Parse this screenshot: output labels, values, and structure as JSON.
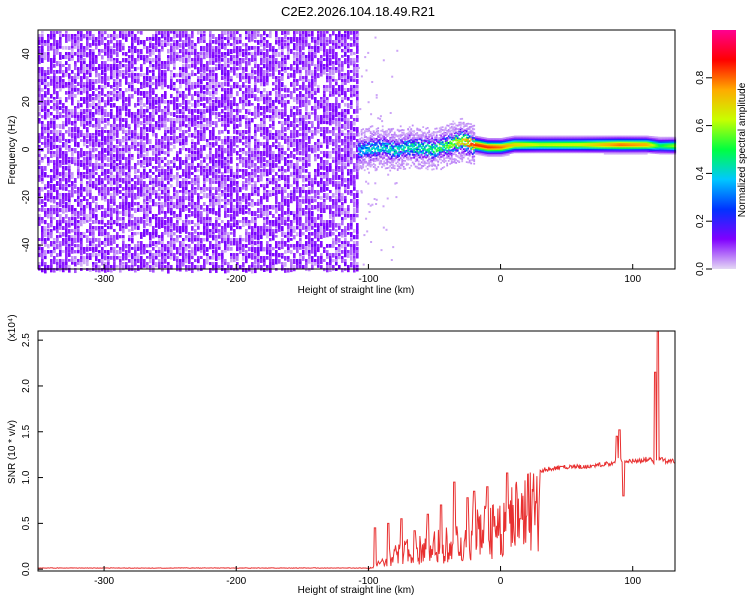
{
  "title": "C2E2.2026.104.18.49.R21",
  "chart_data": [
    {
      "type": "heatmap",
      "xlabel": "Height of straight line (km)",
      "ylabel": "Frequency (Hz)",
      "xlim": [
        -350,
        132
      ],
      "ylim": [
        -50,
        50
      ],
      "x_ticks": [
        -300,
        -200,
        -100,
        0,
        100
      ],
      "x_tick_labels": [
        "-300",
        "-200",
        "-100",
        "0",
        "100"
      ],
      "y_ticks": [
        -40,
        -20,
        0,
        20,
        40
      ],
      "y_tick_labels": [
        "-40",
        "-20",
        "0",
        "20",
        "40"
      ],
      "noise_region_x": [
        -350,
        -109
      ],
      "ridge": {
        "x": [
          -108,
          -100,
          -90,
          -80,
          -70,
          -60,
          -50,
          -40,
          -30,
          -20,
          -10,
          0,
          10,
          30,
          60,
          90,
          110,
          120,
          132
        ],
        "freq": [
          0,
          0.5,
          1,
          0,
          1.5,
          0.5,
          0.5,
          2,
          4,
          2,
          1,
          1,
          2,
          2,
          2,
          2,
          2,
          1.5,
          1.5
        ],
        "amp": [
          0.35,
          0.4,
          0.4,
          0.42,
          0.45,
          0.45,
          0.5,
          0.55,
          0.7,
          0.85,
          0.85,
          0.8,
          0.7,
          0.62,
          0.65,
          0.8,
          0.75,
          0.5,
          0.6
        ]
      },
      "colorbar": {
        "label": "Normalized spectral amplitude",
        "range": [
          0,
          1
        ],
        "ticks": [
          0,
          0.2,
          0.4,
          0.6,
          0.8
        ],
        "tick_labels": [
          "0.0",
          "0.2",
          "0.4",
          "0.6",
          "0.8"
        ],
        "colors": [
          "#e4d8f4",
          "#8000ff",
          "#0033ff",
          "#00c8ff",
          "#00ff40",
          "#c8ff00",
          "#ffaa00",
          "#ff0000",
          "#ff0090"
        ]
      }
    },
    {
      "type": "line",
      "xlabel": "Height of straight line (km)",
      "ylabel": "SNR (10 * v/v)",
      "y_multiplier_label": "(x10⁴)",
      "xlim": [
        -350,
        132
      ],
      "ylim": [
        -0.02,
        2.6
      ],
      "x_ticks": [
        -300,
        -200,
        -100,
        0,
        100
      ],
      "x_tick_labels": [
        "-300",
        "-200",
        "-100",
        "0",
        "100"
      ],
      "y_ticks": [
        0,
        0.5,
        1.0,
        1.5,
        2.0,
        2.5
      ],
      "y_tick_labels": [
        "0.0",
        "0.5",
        "1.0",
        "1.5",
        "2.0",
        "2.5"
      ],
      "series": [
        {
          "color": "#e83030",
          "x": [
            -350,
            -100,
            -95,
            -90,
            -85,
            -80,
            -75,
            -70,
            -65,
            -60,
            -55,
            -50,
            -45,
            -40,
            -35,
            -30,
            -25,
            -20,
            -15,
            -10,
            -5,
            0,
            5,
            10,
            15,
            20,
            25,
            30,
            40,
            50,
            60,
            70,
            80,
            85,
            90,
            95,
            100,
            105,
            110,
            113,
            116,
            118,
            121,
            125,
            132
          ],
          "y": [
            0.01,
            0.01,
            0.05,
            0.12,
            0.2,
            0.25,
            0.28,
            0.3,
            0.3,
            0.35,
            0.38,
            0.4,
            0.4,
            0.45,
            0.45,
            0.5,
            0.6,
            0.65,
            0.65,
            0.65,
            0.7,
            0.75,
            0.8,
            0.85,
            0.9,
            1.0,
            1.05,
            1.08,
            1.1,
            1.12,
            1.12,
            1.13,
            1.15,
            1.15,
            1.2,
            1.18,
            1.18,
            1.18,
            1.2,
            1.2,
            1.15,
            1.2,
            1.2,
            1.18,
            1.18
          ],
          "spike_x": [
            -95,
            -85,
            -75,
            -65,
            -55,
            -45,
            -35,
            -25,
            -20,
            -10,
            5,
            15,
            88,
            90,
            93,
            117,
            119
          ],
          "spike_y": [
            0.45,
            0.5,
            0.55,
            0.42,
            0.6,
            0.7,
            0.95,
            0.78,
            0.85,
            0.9,
            1.05,
            0.55,
            1.45,
            1.52,
            0.8,
            2.15,
            2.6
          ]
        }
      ]
    }
  ]
}
